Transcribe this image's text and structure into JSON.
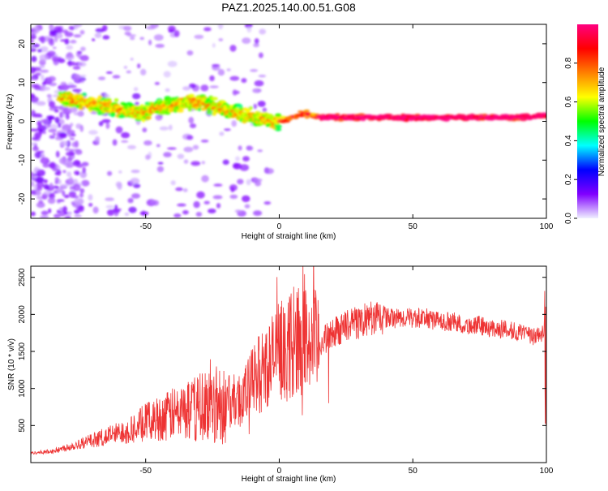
{
  "figure": {
    "title": "PAZ1.2025.140.00.51.G08"
  },
  "chart_data": [
    {
      "type": "heatmap",
      "xlabel": "Height of straight line (km)",
      "ylabel": "Frequency (Hz)",
      "xlim": [
        -93,
        100
      ],
      "ylim": [
        -25,
        25
      ],
      "xticks": [
        -50,
        0,
        50,
        100
      ],
      "yticks": [
        -20,
        -10,
        0,
        10,
        20
      ],
      "ridge": {
        "x": [
          -80,
          -75,
          -70,
          -65,
          -60,
          -55,
          -50,
          -45,
          -40,
          -35,
          -30,
          -25,
          -20,
          -15,
          -10,
          -5,
          0,
          5,
          10,
          15,
          20,
          30,
          40,
          50,
          60,
          70,
          80,
          90,
          100
        ],
        "y": [
          6,
          5,
          4.5,
          4,
          3,
          2.5,
          2,
          4,
          4,
          5,
          5,
          4,
          3,
          2,
          1,
          0.5,
          0,
          1,
          2,
          1,
          1,
          1,
          1,
          1,
          1,
          1,
          1,
          1,
          1.5
        ]
      },
      "colorbar": {
        "label": "Normalized spectral amplitude",
        "range": [
          0,
          1
        ],
        "ticks": [
          0.0,
          0.2,
          0.4,
          0.6,
          0.8
        ],
        "tick_labels": [
          "0.0",
          "0.2",
          "0.4",
          "0.6",
          "0.8"
        ],
        "colormap": [
          "#f0f0ff",
          "#8000ff",
          "#0000ff",
          "#00ffff",
          "#00ff00",
          "#ffff00",
          "#ff8000",
          "#ff0000",
          "#ff0080"
        ]
      }
    },
    {
      "type": "line",
      "xlabel": "Height of straight line (km)",
      "ylabel": "SNR (10 * v/v)",
      "xlim": [
        -93,
        100
      ],
      "ylim": [
        0,
        2650
      ],
      "xticks": [
        -50,
        0,
        50,
        100
      ],
      "yticks": [
        500,
        1000,
        1500,
        2000,
        2500
      ],
      "color": "#ee3333",
      "series": [
        {
          "x": [
            -93,
            -85,
            -80,
            -75,
            -70,
            -65,
            -60,
            -55,
            -50,
            -45,
            -40,
            -35,
            -30,
            -25,
            -20,
            -15,
            -12,
            -10,
            -5,
            0,
            5,
            10,
            15,
            20,
            25,
            30,
            35,
            40,
            45,
            50,
            55,
            60,
            65,
            70,
            75,
            80,
            85,
            90,
            95,
            100
          ],
          "y": [
            130,
            150,
            200,
            250,
            300,
            350,
            400,
            450,
            550,
            600,
            650,
            700,
            750,
            800,
            800,
            850,
            950,
            1100,
            1300,
            1500,
            1600,
            1650,
            1600,
            1750,
            1850,
            1900,
            1950,
            1950,
            1950,
            1950,
            1950,
            1900,
            1900,
            1850,
            1850,
            1800,
            1800,
            1750,
            1700,
            1750
          ]
        }
      ]
    }
  ]
}
